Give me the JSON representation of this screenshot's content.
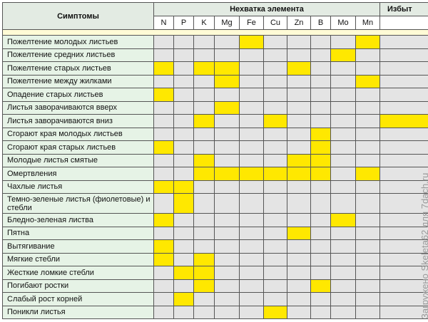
{
  "header": {
    "symptoms": "Симптомы",
    "deficiency": "Нехватка элемента",
    "excess": "Избыт"
  },
  "columns": [
    "N",
    "P",
    "K",
    "Mg",
    "Fe",
    "Cu",
    "Zn",
    "B",
    "Mo",
    "Mn"
  ],
  "rows": [
    {
      "label": "Пожелтение молодых листьев",
      "marks": [
        0,
        0,
        0,
        0,
        1,
        0,
        0,
        0,
        0,
        1,
        0
      ]
    },
    {
      "label": "Пожелтение средних листьев",
      "marks": [
        0,
        0,
        0,
        0,
        0,
        0,
        0,
        0,
        1,
        0,
        0
      ]
    },
    {
      "label": "Пожелтение старых листьев",
      "marks": [
        1,
        0,
        1,
        1,
        0,
        0,
        1,
        0,
        0,
        0,
        0
      ]
    },
    {
      "label": "Пожелтение между жилками",
      "marks": [
        0,
        0,
        0,
        1,
        0,
        0,
        0,
        0,
        0,
        1,
        0
      ]
    },
    {
      "label": "Опадение старых листьев",
      "marks": [
        1,
        0,
        0,
        0,
        0,
        0,
        0,
        0,
        0,
        0,
        0
      ]
    },
    {
      "label": "Листья заворачиваются вверх",
      "marks": [
        0,
        0,
        0,
        1,
        0,
        0,
        0,
        0,
        0,
        0,
        0
      ]
    },
    {
      "label": "Листья заворачиваются вниз",
      "marks": [
        0,
        0,
        1,
        0,
        0,
        1,
        0,
        0,
        0,
        0,
        1
      ]
    },
    {
      "label": "Сгорают края молодых листьев",
      "marks": [
        0,
        0,
        0,
        0,
        0,
        0,
        0,
        1,
        0,
        0,
        0
      ]
    },
    {
      "label": "Сгорают края старых листьев",
      "marks": [
        1,
        0,
        0,
        0,
        0,
        0,
        0,
        1,
        0,
        0,
        0
      ]
    },
    {
      "label": "Молодые листья смятые",
      "marks": [
        0,
        0,
        1,
        0,
        0,
        0,
        1,
        1,
        0,
        0,
        0
      ]
    },
    {
      "label": "Омертвления",
      "marks": [
        0,
        0,
        1,
        1,
        1,
        1,
        1,
        1,
        0,
        1,
        0
      ]
    },
    {
      "label": "Чахлые листья",
      "marks": [
        1,
        1,
        0,
        0,
        0,
        0,
        0,
        0,
        0,
        0,
        0
      ]
    },
    {
      "label": "Темно-зеленые листья (фиолетовые) и стебли",
      "marks": [
        0,
        1,
        0,
        0,
        0,
        0,
        0,
        0,
        0,
        0,
        0
      ]
    },
    {
      "label": "Бледно-зеленая листва",
      "marks": [
        1,
        0,
        0,
        0,
        0,
        0,
        0,
        0,
        1,
        0,
        0
      ]
    },
    {
      "label": "Пятна",
      "marks": [
        0,
        0,
        0,
        0,
        0,
        0,
        1,
        0,
        0,
        0,
        0
      ]
    },
    {
      "label": "Вытягивание",
      "marks": [
        1,
        0,
        0,
        0,
        0,
        0,
        0,
        0,
        0,
        0,
        0
      ]
    },
    {
      "label": "Мягкие стебли",
      "marks": [
        1,
        0,
        1,
        0,
        0,
        0,
        0,
        0,
        0,
        0,
        0
      ]
    },
    {
      "label": "Жесткие ломкие стебли",
      "marks": [
        0,
        1,
        1,
        0,
        0,
        0,
        0,
        0,
        0,
        0,
        0
      ]
    },
    {
      "label": "Погибают ростки",
      "marks": [
        0,
        0,
        1,
        0,
        0,
        0,
        0,
        1,
        0,
        0,
        0
      ]
    },
    {
      "label": "Слабый рост корней",
      "marks": [
        0,
        1,
        0,
        0,
        0,
        0,
        0,
        0,
        0,
        0,
        0
      ]
    },
    {
      "label": "Поникли листья",
      "marks": [
        0,
        0,
        0,
        0,
        0,
        1,
        0,
        0,
        0,
        0,
        0
      ]
    }
  ],
  "watermark": "Загружено Skeleta62 для 7dach.ru"
}
